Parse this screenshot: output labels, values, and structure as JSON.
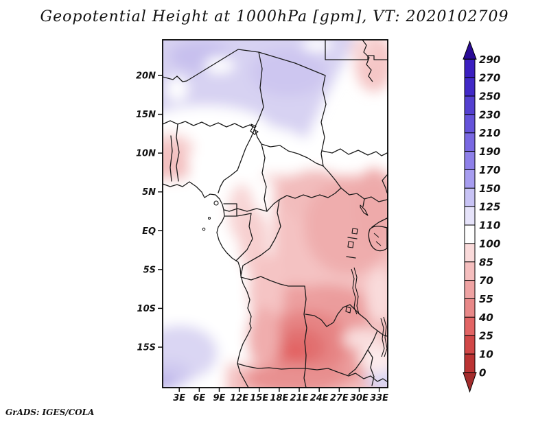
{
  "title": "Geopotential Height at 1000hPa [gpm], VT: 2020102709",
  "credit": "GrADS: IGES/COLA",
  "map": {
    "y_axis_labels": [
      "20N",
      "15N",
      "10N",
      "5N",
      "EQ",
      "5S",
      "10S",
      "15S"
    ],
    "x_axis_labels": [
      "3E",
      "6E",
      "9E",
      "12E",
      "15E",
      "18E",
      "21E",
      "24E",
      "27E",
      "30E",
      "33E"
    ]
  },
  "colorbar": {
    "labels": [
      "290",
      "270",
      "250",
      "230",
      "210",
      "190",
      "170",
      "150",
      "125",
      "110",
      "100",
      "85",
      "70",
      "55",
      "40",
      "25",
      "10",
      "0"
    ],
    "colors_top_to_bottom": [
      "#2a0b96",
      "#3b1fc0",
      "#4129c7",
      "#5440d0",
      "#6553da",
      "#7968e2",
      "#8e80e9",
      "#a79df0",
      "#c8c3f5",
      "#e6e3fa",
      "#ffffff",
      "#fadada",
      "#f5bebe",
      "#efa3a3",
      "#e88888",
      "#e26464",
      "#d14747",
      "#bb3333",
      "#a32c2c"
    ]
  },
  "chart_data": {
    "type": "heatmap",
    "title": "Geopotential Height at 1000hPa [gpm], VT: 2020102709",
    "variable": "Geopotential Height",
    "level": "1000hPa",
    "units": "gpm",
    "valid_time": "2020102709",
    "renderer": "GrADS: IGES/COLA",
    "x_ticks": [
      "3E",
      "6E",
      "9E",
      "12E",
      "15E",
      "18E",
      "21E",
      "24E",
      "27E",
      "30E",
      "33E"
    ],
    "y_ticks": [
      "20N",
      "15N",
      "10N",
      "5N",
      "EQ",
      "5S",
      "10S",
      "15S"
    ],
    "x_range_deg_east": [
      0.5,
      34.5
    ],
    "y_range_deg_north": [
      -20,
      24.6
    ],
    "grid": false,
    "legend_position": "right colorbar with over/under arrow caps",
    "colorbar_levels_gpm": [
      0,
      10,
      25,
      40,
      55,
      70,
      85,
      100,
      110,
      125,
      150,
      170,
      190,
      210,
      230,
      250,
      270,
      290
    ],
    "regions_approx_gpm": [
      {
        "area": "Sahara band north of ~17N",
        "value_range": "125-170"
      },
      {
        "area": "Sahel transition band ~13-17N",
        "value_range": "110-125"
      },
      {
        "area": "West Sahel near left edge ~6-13N",
        "value_range": "85-110"
      },
      {
        "area": "Gulf of Guinea / SE Atlantic ocean area",
        "value_range": "110-125"
      },
      {
        "area": "Congo Basin, Sudan and East Africa",
        "value_range": "70-100"
      },
      {
        "area": "Angola-Zambia core ~15-21E, 13-17S",
        "value_range": "25-55"
      },
      {
        "area": "SW Atlantic corner south of ~12S",
        "value_range": "125-150"
      },
      {
        "area": "SE corner near 33E, 17S",
        "value_range": "125-150"
      },
      {
        "area": "NE corner along Nile ~30-34E, 18-24N",
        "value_range": "85-110"
      }
    ]
  }
}
